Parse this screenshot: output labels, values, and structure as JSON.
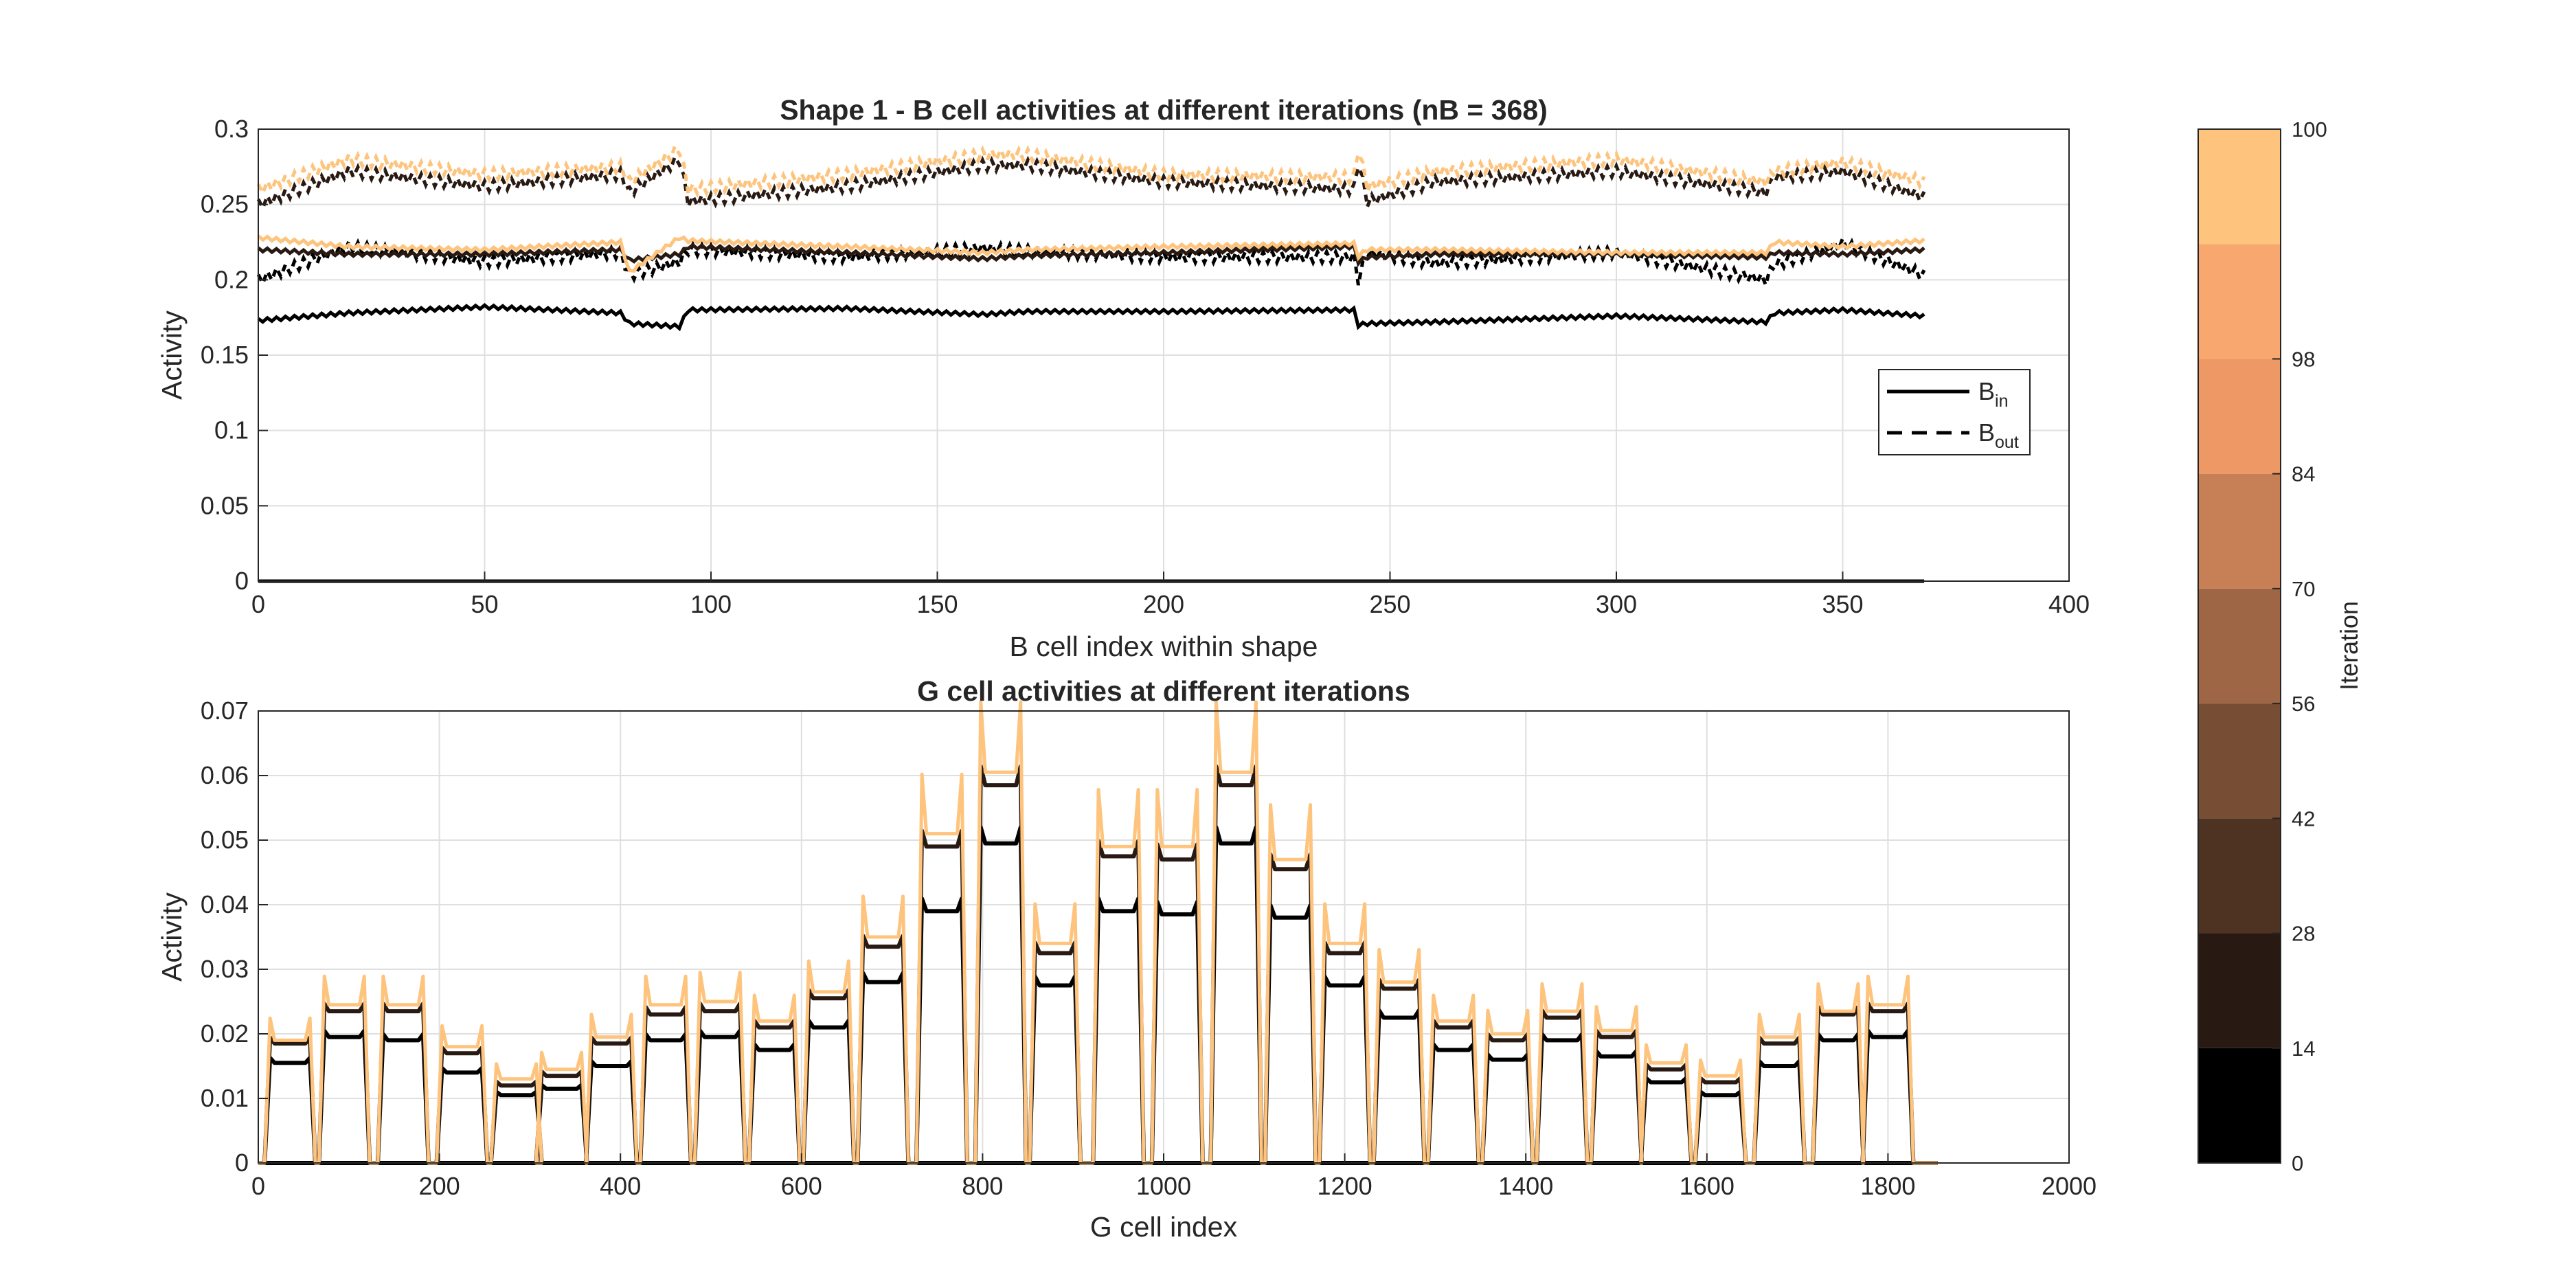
{
  "chart_data": [
    {
      "type": "line",
      "title": "Shape 1 - B cell activities at different iterations (nB = 368)",
      "xlabel": "B cell index within shape",
      "ylabel": "Activity",
      "xlim": [
        0,
        400
      ],
      "ylim": [
        0,
        0.3
      ],
      "xticks": [
        0,
        50,
        100,
        150,
        200,
        250,
        300,
        350,
        400
      ],
      "yticks": [
        0,
        0.05,
        0.1,
        0.15,
        0.2,
        0.25,
        0.3
      ],
      "xtick_labels": [
        "0",
        "50",
        "100",
        "150",
        "200",
        "250",
        "300",
        "350",
        "400"
      ],
      "ytick_labels": [
        "0",
        "0.05",
        "0.1",
        "0.15",
        "0.2",
        "0.25",
        "0.3"
      ],
      "grid": true,
      "legend": {
        "position": "right",
        "entries": [
          {
            "base": "B",
            "sub": "in",
            "style": "solid"
          },
          {
            "base": "B",
            "sub": "out",
            "style": "dashed"
          }
        ]
      },
      "series": [
        {
          "iteration": 0,
          "style": "solid",
          "x": [
            0,
            368
          ],
          "y": [
            0,
            0
          ]
        },
        {
          "iteration": 0,
          "style": "dashed",
          "x": [
            0,
            368
          ],
          "y": [
            0,
            0
          ]
        },
        {
          "iteration": 1,
          "style": "solid",
          "x": [
            0,
            20,
            50,
            80,
            82,
            93,
            95,
            130,
            160,
            170,
            200,
            242,
            243,
            245,
            260,
            300,
            333,
            335,
            350,
            368
          ],
          "y": [
            0.173,
            0.178,
            0.182,
            0.178,
            0.171,
            0.169,
            0.18,
            0.181,
            0.177,
            0.179,
            0.179,
            0.18,
            0.17,
            0.171,
            0.172,
            0.176,
            0.172,
            0.178,
            0.18,
            0.176
          ]
        },
        {
          "iteration": 1,
          "style": "dashed",
          "x": [
            0,
            20,
            50,
            80,
            82,
            93,
            95,
            130,
            160,
            170,
            200,
            242,
            243,
            245,
            260,
            300,
            333,
            335,
            350,
            368
          ],
          "y": [
            0.2,
            0.222,
            0.212,
            0.218,
            0.203,
            0.212,
            0.22,
            0.215,
            0.221,
            0.219,
            0.215,
            0.215,
            0.2,
            0.218,
            0.211,
            0.218,
            0.2,
            0.21,
            0.224,
            0.203
          ]
        },
        {
          "iteration": 14,
          "style": "solid",
          "x": [
            0,
            20,
            50,
            80,
            82,
            93,
            95,
            130,
            160,
            170,
            200,
            242,
            243,
            245,
            260,
            300,
            333,
            335,
            350,
            368
          ],
          "y": [
            0.22,
            0.217,
            0.217,
            0.22,
            0.213,
            0.217,
            0.222,
            0.218,
            0.214,
            0.216,
            0.218,
            0.222,
            0.212,
            0.215,
            0.217,
            0.217,
            0.215,
            0.218,
            0.217,
            0.22
          ]
        },
        {
          "iteration": 14,
          "style": "dashed",
          "x": [
            0,
            20,
            50,
            80,
            82,
            93,
            95,
            130,
            160,
            170,
            200,
            242,
            243,
            245,
            260,
            300,
            333,
            335,
            350,
            368
          ],
          "y": [
            0.25,
            0.272,
            0.262,
            0.27,
            0.258,
            0.28,
            0.252,
            0.262,
            0.276,
            0.276,
            0.265,
            0.26,
            0.278,
            0.252,
            0.265,
            0.272,
            0.258,
            0.268,
            0.272,
            0.255
          ]
        },
        {
          "iteration": 100,
          "style": "solid",
          "x": [
            0,
            20,
            50,
            80,
            82,
            93,
            95,
            130,
            160,
            170,
            200,
            242,
            243,
            245,
            260,
            300,
            333,
            335,
            350,
            368
          ],
          "y": [
            0.228,
            0.222,
            0.22,
            0.225,
            0.205,
            0.228,
            0.226,
            0.222,
            0.218,
            0.22,
            0.222,
            0.224,
            0.216,
            0.22,
            0.22,
            0.218,
            0.218,
            0.225,
            0.222,
            0.226
          ]
        },
        {
          "iteration": 100,
          "style": "dashed",
          "x": [
            0,
            20,
            50,
            80,
            82,
            93,
            95,
            130,
            160,
            170,
            200,
            242,
            243,
            245,
            260,
            300,
            333,
            335,
            350,
            368
          ],
          "y": [
            0.26,
            0.28,
            0.27,
            0.275,
            0.265,
            0.287,
            0.26,
            0.27,
            0.283,
            0.283,
            0.27,
            0.268,
            0.287,
            0.262,
            0.272,
            0.28,
            0.265,
            0.272,
            0.278,
            0.265
          ]
        }
      ]
    },
    {
      "type": "line",
      "title": "G cell activities at different iterations",
      "xlabel": "G cell index",
      "ylabel": "Activity",
      "xlim": [
        0,
        2000
      ],
      "ylim": [
        0,
        0.07
      ],
      "xticks": [
        0,
        200,
        400,
        600,
        800,
        1000,
        1200,
        1400,
        1600,
        1800,
        2000
      ],
      "yticks": [
        0,
        0.01,
        0.02,
        0.03,
        0.04,
        0.05,
        0.06,
        0.07
      ],
      "xtick_labels": [
        "0",
        "200",
        "400",
        "600",
        "800",
        "1000",
        "1200",
        "1400",
        "1600",
        "1800",
        "2000"
      ],
      "ytick_labels": [
        "0",
        "0.01",
        "0.02",
        "0.03",
        "0.04",
        "0.05",
        "0.06",
        "0.07"
      ],
      "grid": true,
      "bump_centers": [
        35,
        95,
        160,
        225,
        285,
        335,
        390,
        450,
        510,
        570,
        630,
        690,
        755,
        820,
        880,
        950,
        1015,
        1080,
        1140,
        1200,
        1260,
        1320,
        1380,
        1440,
        1500,
        1555,
        1615,
        1680,
        1745,
        1800
      ],
      "series": [
        {
          "iteration": 0,
          "x": [
            0,
            1855
          ],
          "y": [
            0,
            0
          ]
        },
        {
          "iteration": 1,
          "x": [
            35,
            95,
            160,
            225,
            285,
            335,
            390,
            450,
            510,
            570,
            630,
            690,
            755,
            820,
            880,
            950,
            1015,
            1080,
            1140,
            1200,
            1260,
            1320,
            1380,
            1440,
            1500,
            1555,
            1615,
            1680,
            1745,
            1800
          ],
          "y": [
            0.0155,
            0.0195,
            0.019,
            0.014,
            0.0105,
            0.0115,
            0.015,
            0.019,
            0.0195,
            0.0175,
            0.021,
            0.028,
            0.039,
            0.0495,
            0.0275,
            0.039,
            0.0385,
            0.0495,
            0.038,
            0.0275,
            0.0225,
            0.0175,
            0.016,
            0.019,
            0.0165,
            0.0125,
            0.0105,
            0.015,
            0.019,
            0.0195
          ]
        },
        {
          "iteration": 14,
          "x": [
            35,
            95,
            160,
            225,
            285,
            335,
            390,
            450,
            510,
            570,
            630,
            690,
            755,
            820,
            880,
            950,
            1015,
            1080,
            1140,
            1200,
            1260,
            1320,
            1380,
            1440,
            1500,
            1555,
            1615,
            1680,
            1745,
            1800
          ],
          "y": [
            0.0185,
            0.0235,
            0.0235,
            0.017,
            0.012,
            0.0135,
            0.0185,
            0.023,
            0.0235,
            0.021,
            0.0255,
            0.0335,
            0.049,
            0.0585,
            0.0325,
            0.0475,
            0.047,
            0.0585,
            0.0455,
            0.0325,
            0.027,
            0.021,
            0.019,
            0.0225,
            0.0195,
            0.0145,
            0.0125,
            0.0185,
            0.023,
            0.0235
          ]
        },
        {
          "iteration": 100,
          "x": [
            35,
            95,
            160,
            225,
            285,
            335,
            390,
            450,
            510,
            570,
            630,
            690,
            755,
            820,
            880,
            950,
            1015,
            1080,
            1140,
            1200,
            1260,
            1320,
            1380,
            1440,
            1500,
            1555,
            1615,
            1680,
            1745,
            1800
          ],
          "y": [
            0.019,
            0.0245,
            0.0245,
            0.018,
            0.013,
            0.0145,
            0.0195,
            0.0245,
            0.025,
            0.022,
            0.0265,
            0.035,
            0.051,
            0.0605,
            0.034,
            0.049,
            0.049,
            0.0605,
            0.047,
            0.034,
            0.028,
            0.022,
            0.02,
            0.0235,
            0.0205,
            0.0155,
            0.0135,
            0.0195,
            0.0235,
            0.0245
          ]
        }
      ]
    }
  ],
  "colorbar": {
    "label": "Iteration",
    "ticks": [
      "0",
      "14",
      "28",
      "42",
      "56",
      "70",
      "84",
      "98",
      "100"
    ],
    "colors": [
      "#000000",
      "#281a12",
      "#4f3322",
      "#774d33",
      "#9f6645",
      "#c77f56",
      "#ee9866",
      "#f8a76f",
      "#fec47d"
    ]
  }
}
